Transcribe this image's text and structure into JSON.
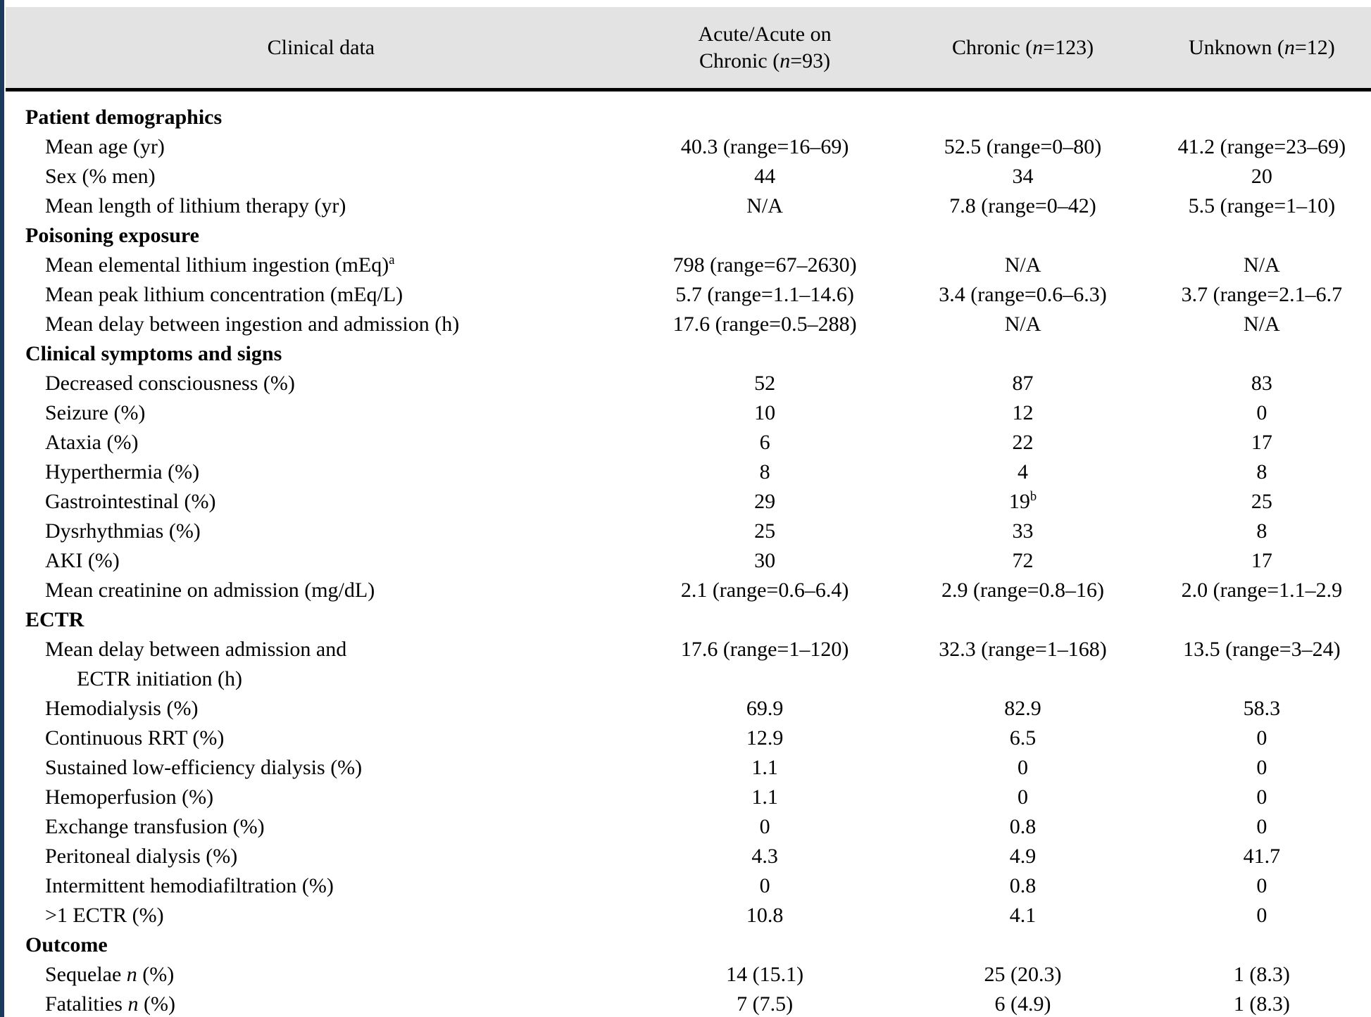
{
  "colors": {
    "accent_border": "#1b3a5e",
    "header_background": "#e3e3e3",
    "header_rule": "#000000",
    "text": "#000000"
  },
  "header": {
    "columns": [
      "Clinical data",
      "Acute/Acute on\nChronic (*n*=93)",
      "Chronic (*n*=123)",
      "Unknown (*n*=12)"
    ]
  },
  "rows": [
    {
      "type": "section",
      "label": "Patient demographics",
      "values": [
        "",
        "",
        ""
      ]
    },
    {
      "type": "data",
      "label": "Mean age (yr)",
      "values": [
        "40.3 (range=16–69)",
        "52.5 (range=0–80)",
        "41.2 (range=23–69)"
      ]
    },
    {
      "type": "data",
      "label": "Sex (% men)",
      "values": [
        "44",
        "34",
        "20"
      ]
    },
    {
      "type": "data",
      "label": "Mean length of lithium therapy (yr)",
      "values": [
        "N/A",
        "7.8 (range=0–42)",
        "5.5 (range=1–10)"
      ]
    },
    {
      "type": "section",
      "label": "Poisoning exposure",
      "values": [
        "",
        "",
        ""
      ]
    },
    {
      "type": "data",
      "label": "Mean elemental lithium ingestion (mEq)^a",
      "values": [
        "798 (range=67–2630)",
        "N/A",
        "N/A"
      ]
    },
    {
      "type": "data",
      "label": "Mean peak lithium concentration (mEq/L)",
      "values": [
        "5.7 (range=1.1–14.6)",
        "3.4 (range=0.6–6.3)",
        "3.7 (range=2.1–6.7"
      ]
    },
    {
      "type": "data",
      "label": "Mean delay between ingestion and admission (h)",
      "values": [
        "17.6 (range=0.5–288)",
        "N/A",
        "N/A"
      ]
    },
    {
      "type": "section",
      "label": "Clinical symptoms and signs",
      "values": [
        "",
        "",
        ""
      ]
    },
    {
      "type": "data",
      "label": "Decreased consciousness (%)",
      "values": [
        "52",
        "87",
        "83"
      ]
    },
    {
      "type": "data",
      "label": "Seizure (%)",
      "values": [
        "10",
        "12",
        "0"
      ]
    },
    {
      "type": "data",
      "label": "Ataxia (%)",
      "values": [
        "6",
        "22",
        "17"
      ]
    },
    {
      "type": "data",
      "label": "Hyperthermia (%)",
      "values": [
        "8",
        "4",
        "8"
      ]
    },
    {
      "type": "data",
      "label": "Gastrointestinal (%)",
      "values": [
        "29",
        "19^b",
        "25"
      ]
    },
    {
      "type": "data",
      "label": "Dysrhythmias (%)",
      "values": [
        "25",
        "33",
        "8"
      ]
    },
    {
      "type": "data",
      "label": "AKI (%)",
      "values": [
        "30",
        "72",
        "17"
      ]
    },
    {
      "type": "data",
      "label": "Mean creatinine on admission (mg/dL)",
      "values": [
        "2.1 (range=0.6–6.4)",
        "2.9 (range=0.8–16)",
        "2.0 (range=1.1–2.9"
      ]
    },
    {
      "type": "section",
      "label": "ECTR",
      "values": [
        "",
        "",
        ""
      ]
    },
    {
      "type": "data",
      "label": "Mean delay between admission and\n  ECTR initiation (h)",
      "values": [
        "17.6 (range=1–120)",
        "32.3 (range=1–168)",
        "13.5 (range=3–24)"
      ]
    },
    {
      "type": "data",
      "label": "Hemodialysis (%)",
      "values": [
        "69.9",
        "82.9",
        "58.3"
      ]
    },
    {
      "type": "data",
      "label": "Continuous RRT (%)",
      "values": [
        "12.9",
        "6.5",
        "0"
      ]
    },
    {
      "type": "data",
      "label": "Sustained low-efficiency dialysis (%)",
      "values": [
        "1.1",
        "0",
        "0"
      ]
    },
    {
      "type": "data",
      "label": "Hemoperfusion (%)",
      "values": [
        "1.1",
        "0",
        "0"
      ]
    },
    {
      "type": "data",
      "label": "Exchange transfusion (%)",
      "values": [
        "0",
        "0.8",
        "0"
      ]
    },
    {
      "type": "data",
      "label": "Peritoneal dialysis (%)",
      "values": [
        "4.3",
        "4.9",
        "41.7"
      ]
    },
    {
      "type": "data",
      "label": "Intermittent hemodiafiltration (%)",
      "values": [
        "0",
        "0.8",
        "0"
      ]
    },
    {
      "type": "data",
      "label": ">1 ECTR (%)",
      "values": [
        "10.8",
        "4.1",
        "0"
      ]
    },
    {
      "type": "section",
      "label": "Outcome",
      "values": [
        "",
        "",
        ""
      ]
    },
    {
      "type": "data",
      "label": "Sequelae *n* (%)",
      "values": [
        "14 (15.1)",
        "25 (20.3)",
        "1 (8.3)"
      ]
    },
    {
      "type": "data",
      "label": "Fatalities *n* (%)",
      "values": [
        "7 (7.5)",
        "6 (4.9)",
        "1 (8.3)"
      ]
    }
  ]
}
